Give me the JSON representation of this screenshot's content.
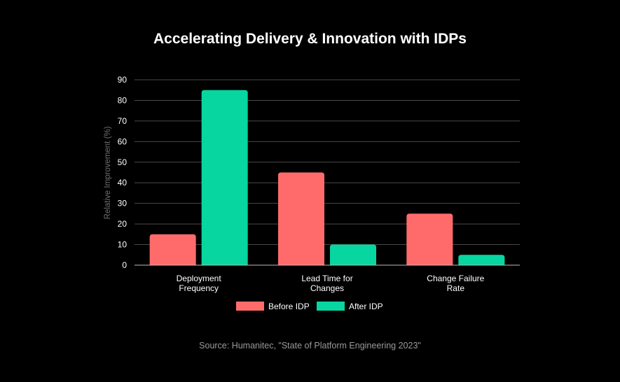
{
  "chart_data": {
    "type": "bar",
    "title": "Accelerating Delivery & Innovation with IDPs",
    "ylabel": "Relative Improvement (%)",
    "xlabel": "",
    "ylim": [
      0,
      90
    ],
    "yticks": [
      0,
      10,
      20,
      30,
      40,
      50,
      60,
      70,
      80,
      90
    ],
    "grid": true,
    "legend_position": "bottom-center",
    "categories": [
      [
        "Deployment",
        "Frequency"
      ],
      [
        "Lead Time for",
        "Changes"
      ],
      [
        "Change Failure",
        "Rate"
      ]
    ],
    "series": [
      {
        "name": "Before IDP",
        "color": "#ff6b6b",
        "values": [
          15,
          45,
          25
        ]
      },
      {
        "name": "After IDP",
        "color": "#07d6a0",
        "values": [
          85,
          10,
          5
        ]
      }
    ]
  },
  "source": "Source: Humanitec, \"State of Platform Engineering 2023\""
}
